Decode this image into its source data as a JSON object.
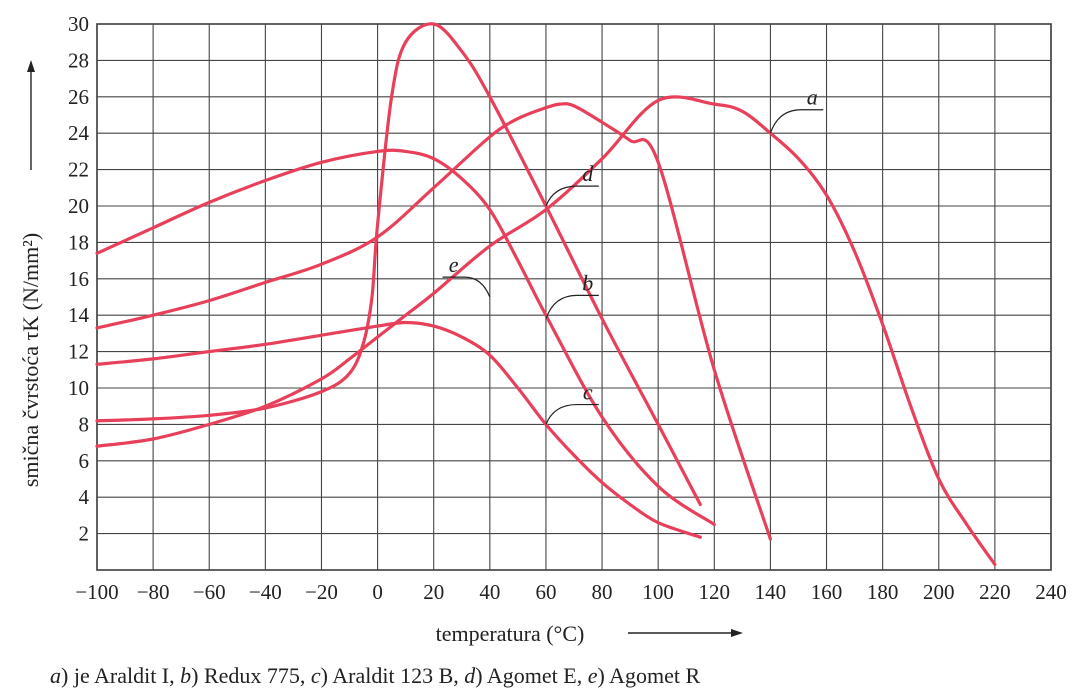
{
  "chart_data": {
    "type": "line",
    "title": "",
    "xlabel": "temperatura (°C)",
    "ylabel": "smična čvrstoća τK (N/mm²)",
    "xlim": [
      -100,
      240
    ],
    "ylim": [
      0,
      30
    ],
    "x_ticks": [
      -100,
      -80,
      -60,
      -40,
      -20,
      0,
      20,
      40,
      60,
      80,
      100,
      120,
      140,
      160,
      180,
      200,
      220,
      240
    ],
    "y_ticks": [
      2,
      4,
      6,
      8,
      10,
      12,
      14,
      16,
      18,
      20,
      22,
      24,
      26,
      28,
      30
    ],
    "x_tick_labels": [
      "−100",
      "−80",
      "−60",
      "−40",
      "−20",
      "0",
      "20",
      "40",
      "60",
      "80",
      "100",
      "120",
      "140",
      "160",
      "180",
      "200",
      "220",
      "240"
    ],
    "y_tick_labels": [
      "2",
      "4",
      "6",
      "8",
      "10",
      "12",
      "14",
      "16",
      "18",
      "20",
      "22",
      "24",
      "26",
      "28",
      "30"
    ],
    "grid": true,
    "series": [
      {
        "name": "a",
        "color": "#e8405a",
        "x": [
          -100,
          -80,
          -60,
          -40,
          -20,
          -10,
          0,
          10,
          20,
          40,
          60,
          80,
          100,
          120,
          130,
          140,
          150,
          160,
          170,
          180,
          190,
          200,
          210,
          220
        ],
        "y": [
          6.8,
          7.2,
          8.0,
          9.0,
          10.5,
          11.6,
          12.8,
          14.0,
          15.2,
          17.8,
          19.8,
          22.6,
          25.8,
          25.6,
          25.2,
          24.0,
          22.6,
          20.6,
          17.5,
          13.5,
          9.0,
          5.0,
          2.5,
          0.3
        ]
      },
      {
        "name": "b",
        "color": "#e8405a",
        "x": [
          -100,
          -80,
          -60,
          -40,
          -20,
          -10,
          -5,
          -2,
          0,
          5,
          10,
          20,
          30,
          40,
          60,
          80,
          100,
          115
        ],
        "y": [
          8.2,
          8.3,
          8.5,
          8.9,
          9.8,
          10.8,
          12.5,
          15.0,
          19.0,
          26.0,
          29.0,
          30.0,
          28.5,
          26.0,
          20.0,
          13.8,
          8.0,
          3.6
        ]
      },
      {
        "name": "c",
        "color": "#e8405a",
        "x": [
          -100,
          -80,
          -60,
          -40,
          -20,
          0,
          10,
          20,
          30,
          40,
          50,
          60,
          70,
          80,
          90,
          100,
          115
        ],
        "y": [
          11.3,
          11.6,
          12.0,
          12.4,
          12.9,
          13.4,
          13.6,
          13.4,
          12.8,
          11.8,
          10.0,
          8.0,
          6.3,
          4.8,
          3.6,
          2.6,
          1.8
        ]
      },
      {
        "name": "d",
        "color": "#e8405a",
        "x": [
          -100,
          -80,
          -60,
          -40,
          -20,
          0,
          10,
          20,
          30,
          40,
          50,
          60,
          80,
          100,
          120
        ],
        "y": [
          17.4,
          18.8,
          20.2,
          21.4,
          22.4,
          23.0,
          23.0,
          22.6,
          21.5,
          19.8,
          17.0,
          14.0,
          8.4,
          4.6,
          2.5
        ]
      },
      {
        "name": "e",
        "color": "#e8405a",
        "x": [
          -100,
          -80,
          -60,
          -40,
          -20,
          0,
          20,
          40,
          50,
          60,
          65,
          70,
          80,
          90,
          100,
          120,
          140
        ],
        "y": [
          13.3,
          14.0,
          14.8,
          15.8,
          16.8,
          18.3,
          21.0,
          23.8,
          24.8,
          25.4,
          25.6,
          25.5,
          24.6,
          23.6,
          22.4,
          11.0,
          1.7
        ]
      }
    ],
    "annotations": [
      {
        "text": "a",
        "x": 140,
        "y": 24,
        "label_x": 151,
        "label_y": 25.4
      },
      {
        "text": "b",
        "x": 60,
        "y": 13.8,
        "label_x": 71,
        "label_y": 15.2
      },
      {
        "text": "c",
        "x": 60,
        "y": 8.0,
        "label_x": 71,
        "label_y": 9.2
      },
      {
        "text": "d",
        "x": 60,
        "y": 20.0,
        "label_x": 71,
        "label_y": 21.2
      },
      {
        "text": "e",
        "x": 40,
        "y": 15.0,
        "label_x": 31,
        "label_y": 16.2
      }
    ]
  },
  "caption": {
    "part1_letter": "a",
    "part1_text": ") je Araldit I, ",
    "part2_letter": "b",
    "part2_text": ") Redux 775, ",
    "part3_letter": "c",
    "part3_text": ") Araldit 123 B, ",
    "part4_letter": "d",
    "part4_text": ") Agomet E, ",
    "part5_letter": "e",
    "part5_text": ") Agomet R"
  }
}
